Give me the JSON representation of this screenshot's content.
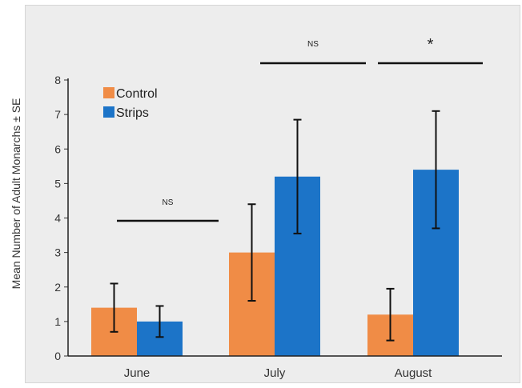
{
  "chart_data": {
    "type": "bar",
    "ylabel": "Mean Number of Adult Monarchs ± SE",
    "xlabel": "",
    "ylim": [
      0,
      8
    ],
    "yticks": [
      "0",
      "1",
      "2",
      "3",
      "4",
      "5",
      "6",
      "7",
      "8"
    ],
    "categories": [
      "June",
      "July",
      "August"
    ],
    "series": [
      {
        "name": "Control",
        "color": "#f08c46",
        "values": [
          1.4,
          3.0,
          1.2
        ],
        "se": [
          0.7,
          1.4,
          0.75
        ]
      },
      {
        "name": "Strips",
        "color": "#1c74c8",
        "values": [
          1.0,
          5.2,
          5.4
        ],
        "se": [
          0.45,
          1.65,
          1.7
        ]
      }
    ],
    "legend_position": "top-left",
    "annotations": [
      {
        "category": "June",
        "text": "NS"
      },
      {
        "category": "July",
        "text": "NS"
      },
      {
        "category": "August",
        "text": "*"
      }
    ]
  }
}
